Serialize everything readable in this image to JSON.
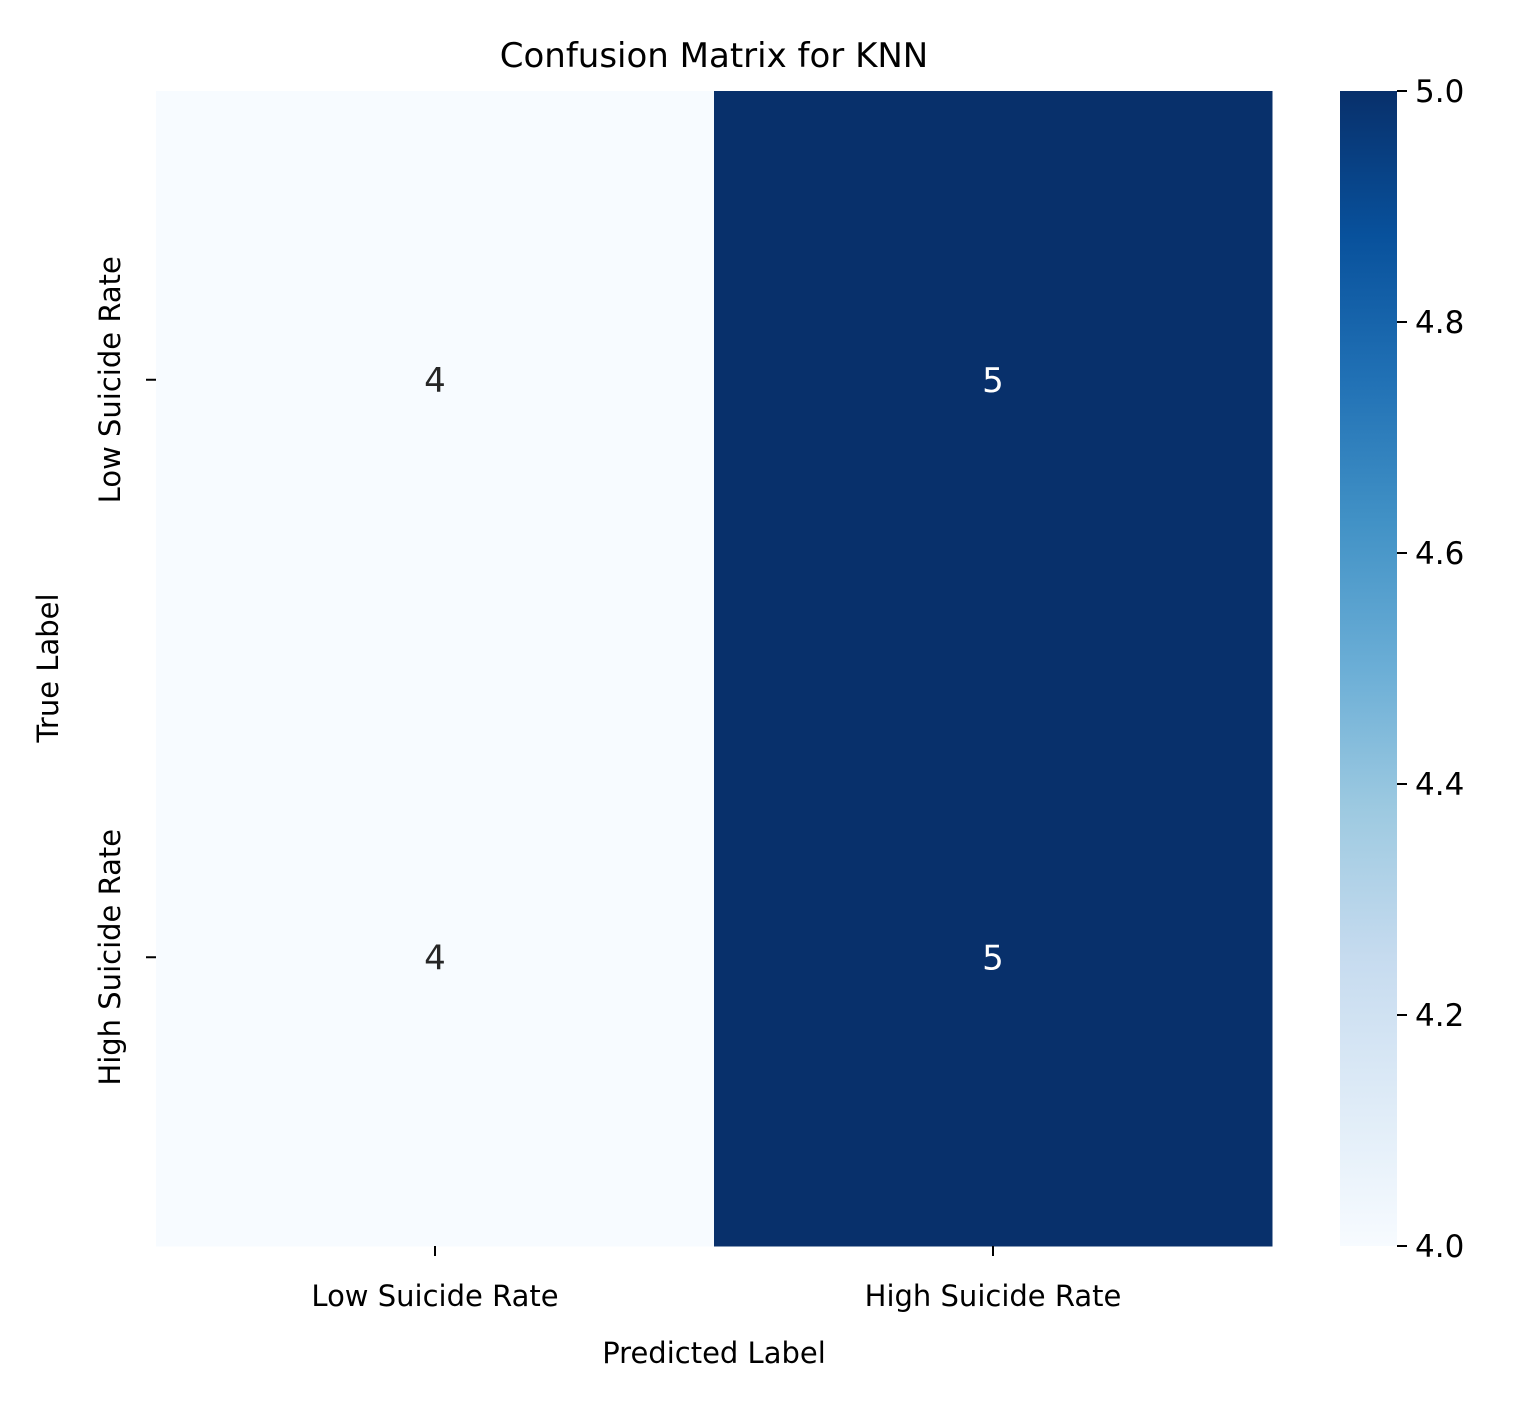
{
  "chart_data": {
    "type": "heatmap",
    "title": "Confusion Matrix for KNN",
    "xlabel": "Predicted Label",
    "ylabel": "True Label",
    "x_categories": [
      "Low Suicide Rate",
      "High Suicide Rate"
    ],
    "y_categories": [
      "Low Suicide Rate",
      "High Suicide Rate"
    ],
    "values": [
      [
        4,
        5
      ],
      [
        4,
        5
      ]
    ],
    "colormap": "Blues",
    "colorbar": {
      "range": [
        4.0,
        5.0
      ],
      "ticks": [
        "4.0",
        "4.2",
        "4.4",
        "4.6",
        "4.8",
        "5.0"
      ]
    },
    "colors": {
      "low": "#f7fbff",
      "high": "#08306b",
      "annotation_dark": "#262626",
      "annotation_light": "#ffffff"
    }
  }
}
